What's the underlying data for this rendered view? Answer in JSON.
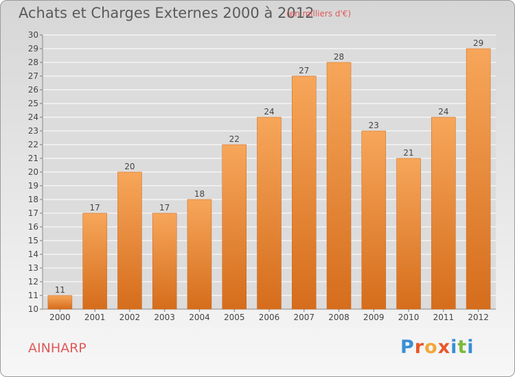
{
  "header": {
    "title": "Achats et Charges Externes 2000 à 2012",
    "subtitle": "(en milliers d'€)"
  },
  "commune": "AINHARP",
  "brand": {
    "name": "Proxiti",
    "letters": [
      {
        "char": "P",
        "color": "#3a8fd6"
      },
      {
        "char": "r",
        "color": "#e8572a"
      },
      {
        "char": "o",
        "color": "#f2a83a"
      },
      {
        "char": "x",
        "color": "#e8572a"
      },
      {
        "char": "i",
        "color": "#3a8fd6"
      },
      {
        "char": "t",
        "color": "#7cba3b"
      },
      {
        "char": "i",
        "color": "#3a8fd6"
      }
    ]
  },
  "colors": {
    "bar_light": "#f7a65a",
    "bar_dark": "#d56d1c",
    "grid": "#ffffff",
    "text": "#444444"
  },
  "chart_data": {
    "type": "bar",
    "title": "Achats et Charges Externes 2000 à 2012",
    "ylabel": "",
    "xlabel": "",
    "categories": [
      "2000",
      "2001",
      "2002",
      "2003",
      "2004",
      "2005",
      "2006",
      "2007",
      "2008",
      "2009",
      "2010",
      "2011",
      "2012"
    ],
    "values": [
      11,
      17,
      20,
      17,
      18,
      22,
      24,
      27,
      28,
      23,
      21,
      24,
      29
    ],
    "ylim": [
      10,
      30
    ],
    "ytick_step": 1,
    "grid": true
  }
}
